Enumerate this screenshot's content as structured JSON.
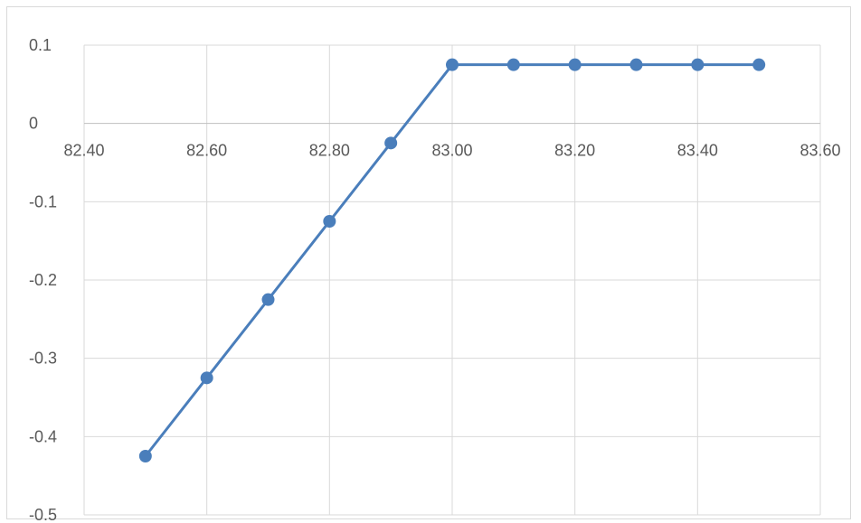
{
  "chart_data": {
    "type": "scatter",
    "mode": "lines+markers",
    "title": "",
    "xlabel": "",
    "ylabel": "",
    "xlim": [
      82.4,
      83.6
    ],
    "ylim": [
      -0.5,
      0.1
    ],
    "x_ticks": [
      "82.40",
      "82.60",
      "82.80",
      "83.00",
      "83.20",
      "83.40",
      "83.60"
    ],
    "y_ticks": [
      "0.1",
      "0",
      "-0.1",
      "-0.2",
      "-0.3",
      "-0.4",
      "-0.5"
    ],
    "grid": true,
    "legend": "none",
    "series": [
      {
        "color": "#4a7ebb",
        "points": [
          {
            "x": 82.5,
            "y": -0.425
          },
          {
            "x": 82.6,
            "y": -0.325
          },
          {
            "x": 82.7,
            "y": -0.225
          },
          {
            "x": 82.8,
            "y": -0.125
          },
          {
            "x": 82.9,
            "y": -0.025
          },
          {
            "x": 83.0,
            "y": 0.075
          },
          {
            "x": 83.1,
            "y": 0.075
          },
          {
            "x": 83.2,
            "y": 0.075
          },
          {
            "x": 83.3,
            "y": 0.075
          },
          {
            "x": 83.4,
            "y": 0.075
          },
          {
            "x": 83.5,
            "y": 0.075
          }
        ]
      }
    ]
  }
}
